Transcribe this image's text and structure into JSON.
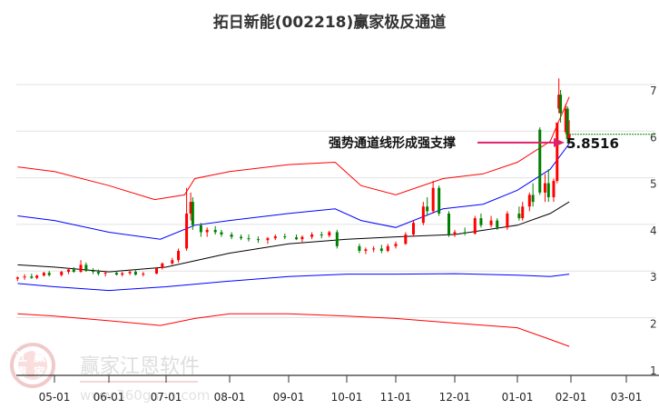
{
  "chart_data": {
    "type": "candlestick",
    "title": "拓日新能(002218)赢家极反通道",
    "x_ticks": [
      "05-01",
      "06-01",
      "07-01",
      "08-01",
      "09-01",
      "10-01",
      "11-01",
      "12-01",
      "01-01",
      "02-01",
      "03-01"
    ],
    "y_ticks": [
      1,
      2,
      3,
      4,
      5,
      6,
      7
    ],
    "ylim": [
      1,
      7
    ],
    "grid": "horizontal",
    "colors": {
      "up": "#ff0000",
      "down": "#008000",
      "upper_band": "#ff0000",
      "mid_band": "#0000ff",
      "ma": "#000000",
      "lower_band": "#0000ff",
      "lower_outer": "#ff0000",
      "annotation": "#e0206a"
    },
    "annotation": {
      "text": "强势通道线形成强支撑",
      "value": "5.8516",
      "price": 5.8516
    },
    "last_close_line": 6.05,
    "candles": [
      [
        "04-10",
        2.95,
        3.0,
        2.9,
        2.98
      ],
      [
        "04-14",
        2.98,
        3.05,
        2.93,
        3.0
      ],
      [
        "04-18",
        3.0,
        3.06,
        2.95,
        2.97
      ],
      [
        "04-21",
        2.97,
        3.04,
        2.94,
        3.02
      ],
      [
        "04-25",
        3.02,
        3.1,
        3.0,
        3.08
      ],
      [
        "04-28",
        3.08,
        3.12,
        3.0,
        3.03
      ],
      [
        "05-05",
        3.03,
        3.12,
        3.0,
        3.1
      ],
      [
        "05-09",
        3.1,
        3.18,
        3.05,
        3.15
      ],
      [
        "05-12",
        3.15,
        3.2,
        3.08,
        3.1
      ],
      [
        "05-16",
        3.1,
        3.35,
        3.08,
        3.25
      ],
      [
        "05-19",
        3.25,
        3.3,
        3.1,
        3.12
      ],
      [
        "05-23",
        3.12,
        3.18,
        3.05,
        3.1
      ],
      [
        "05-26",
        3.1,
        3.15,
        3.02,
        3.06
      ],
      [
        "05-30",
        3.06,
        3.12,
        3.0,
        3.08
      ],
      [
        "06-05",
        3.08,
        3.12,
        3.02,
        3.04
      ],
      [
        "06-08",
        3.04,
        3.1,
        3.0,
        3.07
      ],
      [
        "06-12",
        3.07,
        3.14,
        3.03,
        3.1
      ],
      [
        "06-15",
        3.1,
        3.15,
        3.02,
        3.04
      ],
      [
        "06-19",
        3.04,
        3.1,
        3.0,
        3.06
      ],
      [
        "06-26",
        3.06,
        3.2,
        3.05,
        3.18
      ],
      [
        "06-29",
        3.18,
        3.3,
        3.15,
        3.28
      ],
      [
        "07-04",
        3.28,
        3.4,
        3.25,
        3.35
      ],
      [
        "07-07",
        3.35,
        3.6,
        3.3,
        3.55
      ],
      [
        "07-11",
        3.6,
        4.9,
        3.55,
        4.35
      ],
      [
        "07-13",
        4.35,
        4.8,
        4.2,
        4.6
      ],
      [
        "07-14",
        4.6,
        4.7,
        4.0,
        4.1
      ],
      [
        "07-18",
        4.1,
        4.15,
        3.85,
        3.95
      ],
      [
        "07-21",
        3.95,
        4.05,
        3.85,
        4.0
      ],
      [
        "07-25",
        4.0,
        4.08,
        3.9,
        3.95
      ],
      [
        "07-28",
        3.95,
        4.0,
        3.85,
        3.9
      ],
      [
        "08-02",
        3.9,
        3.95,
        3.8,
        3.85
      ],
      [
        "08-07",
        3.85,
        3.9,
        3.78,
        3.82
      ],
      [
        "08-11",
        3.82,
        3.9,
        3.75,
        3.8
      ],
      [
        "08-16",
        3.8,
        3.86,
        3.72,
        3.78
      ],
      [
        "08-21",
        3.78,
        3.85,
        3.7,
        3.82
      ],
      [
        "08-25",
        3.82,
        3.9,
        3.78,
        3.86
      ],
      [
        "08-30",
        3.86,
        3.92,
        3.8,
        3.84
      ],
      [
        "09-05",
        3.84,
        3.9,
        3.78,
        3.8
      ],
      [
        "09-08",
        3.8,
        3.88,
        3.74,
        3.85
      ],
      [
        "09-13",
        3.85,
        3.95,
        3.8,
        3.9
      ],
      [
        "09-18",
        3.9,
        3.96,
        3.82,
        3.88
      ],
      [
        "09-22",
        3.88,
        3.98,
        3.84,
        3.95
      ],
      [
        "09-26",
        3.95,
        4.0,
        3.6,
        3.65
      ],
      [
        "10-09",
        3.65,
        3.7,
        3.5,
        3.55
      ],
      [
        "10-13",
        3.55,
        3.62,
        3.48,
        3.58
      ],
      [
        "10-18",
        3.58,
        3.65,
        3.52,
        3.6
      ],
      [
        "10-23",
        3.6,
        3.68,
        3.5,
        3.55
      ],
      [
        "10-27",
        3.55,
        3.7,
        3.52,
        3.65
      ],
      [
        "11-01",
        3.65,
        3.75,
        3.6,
        3.7
      ],
      [
        "11-06",
        3.7,
        3.95,
        3.68,
        3.9
      ],
      [
        "11-10",
        3.9,
        4.2,
        3.85,
        4.15
      ],
      [
        "11-15",
        4.15,
        4.6,
        4.1,
        4.5
      ],
      [
        "11-17",
        4.5,
        4.7,
        4.3,
        4.4
      ],
      [
        "11-20",
        4.4,
        5.05,
        4.35,
        4.9
      ],
      [
        "11-23",
        4.9,
        4.95,
        4.3,
        4.35
      ],
      [
        "11-28",
        4.35,
        4.4,
        3.85,
        3.9
      ],
      [
        "12-01",
        3.9,
        4.0,
        3.85,
        3.95
      ],
      [
        "12-06",
        3.95,
        4.05,
        3.88,
        3.92
      ],
      [
        "12-11",
        3.92,
        4.3,
        3.9,
        4.25
      ],
      [
        "12-14",
        4.25,
        4.35,
        4.05,
        4.1
      ],
      [
        "12-19",
        4.1,
        4.3,
        4.05,
        4.2
      ],
      [
        "12-22",
        4.2,
        4.25,
        4.0,
        4.05
      ],
      [
        "12-27",
        4.05,
        4.4,
        4.0,
        4.35
      ],
      [
        "01-02",
        4.35,
        4.5,
        4.2,
        4.25
      ],
      [
        "01-04",
        4.25,
        4.6,
        4.2,
        4.5
      ],
      [
        "01-08",
        4.5,
        4.8,
        4.4,
        4.75
      ],
      [
        "01-10",
        4.75,
        5.0,
        4.5,
        4.6
      ],
      [
        "01-14",
        6.15,
        6.2,
        4.75,
        4.8
      ],
      [
        "01-17",
        4.8,
        5.2,
        4.6,
        5.0
      ],
      [
        "01-19",
        5.0,
        5.3,
        4.6,
        4.7
      ],
      [
        "01-22",
        4.7,
        5.1,
        4.6,
        5.05
      ],
      [
        "01-24",
        5.05,
        6.3,
        5.0,
        6.3
      ],
      [
        "01-25",
        6.6,
        7.25,
        6.5,
        6.9
      ],
      [
        "01-26",
        6.9,
        7.0,
        6.3,
        6.5
      ],
      [
        "01-29",
        6.1,
        6.7,
        6.05,
        6.6
      ],
      [
        "01-30",
        6.6,
        6.65,
        5.85,
        5.95
      ],
      [
        "01-31",
        5.95,
        6.35,
        5.85,
        6.05
      ]
    ],
    "lines": [
      {
        "key": "upper_band",
        "points": [
          [
            "04-10",
            5.35
          ],
          [
            "05-01",
            5.25
          ],
          [
            "06-01",
            4.95
          ],
          [
            "06-25",
            4.65
          ],
          [
            "07-10",
            4.75
          ],
          [
            "07-15",
            5.1
          ],
          [
            "08-01",
            5.25
          ],
          [
            "09-01",
            5.4
          ],
          [
            "09-25",
            5.45
          ],
          [
            "10-10",
            4.95
          ],
          [
            "11-01",
            4.75
          ],
          [
            "11-25",
            5.1
          ],
          [
            "12-15",
            5.2
          ],
          [
            "01-01",
            5.45
          ],
          [
            "01-20",
            5.9
          ],
          [
            "01-31",
            6.85
          ]
        ]
      },
      {
        "key": "mid_band",
        "points": [
          [
            "04-10",
            4.3
          ],
          [
            "05-01",
            4.2
          ],
          [
            "06-01",
            3.95
          ],
          [
            "06-28",
            3.8
          ],
          [
            "07-15",
            4.1
          ],
          [
            "08-01",
            4.2
          ],
          [
            "09-01",
            4.35
          ],
          [
            "09-25",
            4.45
          ],
          [
            "10-10",
            4.2
          ],
          [
            "11-01",
            4.05
          ],
          [
            "11-25",
            4.45
          ],
          [
            "12-15",
            4.55
          ],
          [
            "01-01",
            4.85
          ],
          [
            "01-20",
            5.3
          ],
          [
            "01-31",
            5.85
          ]
        ]
      },
      {
        "key": "ma",
        "points": [
          [
            "04-10",
            3.25
          ],
          [
            "05-01",
            3.2
          ],
          [
            "06-01",
            3.1
          ],
          [
            "07-01",
            3.2
          ],
          [
            "08-01",
            3.5
          ],
          [
            "09-01",
            3.7
          ],
          [
            "10-01",
            3.8
          ],
          [
            "11-01",
            3.85
          ],
          [
            "12-01",
            3.9
          ],
          [
            "01-01",
            4.1
          ],
          [
            "01-20",
            4.35
          ],
          [
            "01-31",
            4.6
          ]
        ]
      },
      {
        "key": "lower_band",
        "points": [
          [
            "04-10",
            2.85
          ],
          [
            "05-01",
            2.78
          ],
          [
            "06-01",
            2.7
          ],
          [
            "07-01",
            2.78
          ],
          [
            "08-01",
            2.9
          ],
          [
            "09-01",
            3.0
          ],
          [
            "10-01",
            3.05
          ],
          [
            "11-01",
            3.05
          ],
          [
            "12-01",
            3.06
          ],
          [
            "01-01",
            3.03
          ],
          [
            "01-20",
            3.0
          ],
          [
            "01-31",
            3.05
          ]
        ]
      },
      {
        "key": "lower_outer",
        "points": [
          [
            "04-10",
            2.2
          ],
          [
            "05-01",
            2.15
          ],
          [
            "06-01",
            2.05
          ],
          [
            "06-28",
            1.95
          ],
          [
            "07-15",
            2.1
          ],
          [
            "08-01",
            2.2
          ],
          [
            "09-01",
            2.2
          ],
          [
            "10-01",
            2.15
          ],
          [
            "11-01",
            2.1
          ],
          [
            "12-01",
            2.0
          ],
          [
            "01-01",
            1.9
          ],
          [
            "01-20",
            1.65
          ],
          [
            "01-31",
            1.5
          ]
        ]
      }
    ]
  },
  "watermark": {
    "name": "赢家江恩软件",
    "url": "www.360gann.com",
    "seal": "江赢恩家"
  }
}
